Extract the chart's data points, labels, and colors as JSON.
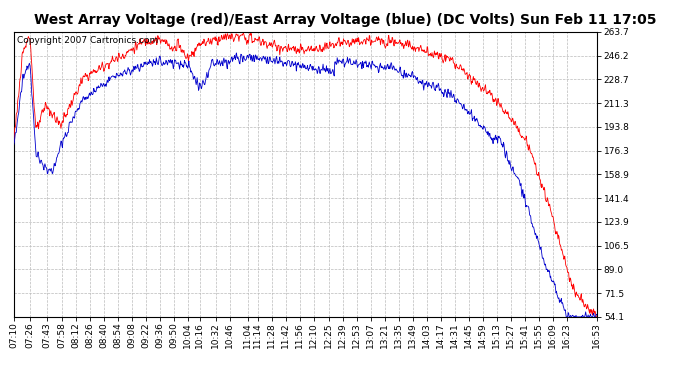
{
  "title": "West Array Voltage (red)/East Array Voltage (blue) (DC Volts) Sun Feb 11 17:05",
  "copyright": "Copyright 2007 Cartronics.com",
  "yticks": [
    54.1,
    71.5,
    89.0,
    106.5,
    123.9,
    141.4,
    158.9,
    176.3,
    193.8,
    211.3,
    228.7,
    246.2,
    263.7
  ],
  "ymin": 54.1,
  "ymax": 263.7,
  "xtick_labels": [
    "07:10",
    "07:26",
    "07:43",
    "07:58",
    "08:12",
    "08:26",
    "08:40",
    "08:54",
    "09:08",
    "09:22",
    "09:36",
    "09:50",
    "10:04",
    "10:16",
    "10:32",
    "10:46",
    "11:04",
    "11:14",
    "11:28",
    "11:42",
    "11:56",
    "12:10",
    "12:25",
    "12:39",
    "12:53",
    "13:07",
    "13:21",
    "13:35",
    "13:49",
    "14:03",
    "14:17",
    "14:31",
    "14:45",
    "14:59",
    "15:13",
    "15:27",
    "15:41",
    "15:55",
    "16:09",
    "16:23",
    "16:53"
  ],
  "title_fontsize": 10,
  "copyright_fontsize": 6.5,
  "tick_fontsize": 6.5,
  "bg_color": "#ffffff",
  "plot_bg_color": "#ffffff",
  "grid_color": "#bbbbbb",
  "red_color": "#ff0000",
  "blue_color": "#0000cc"
}
